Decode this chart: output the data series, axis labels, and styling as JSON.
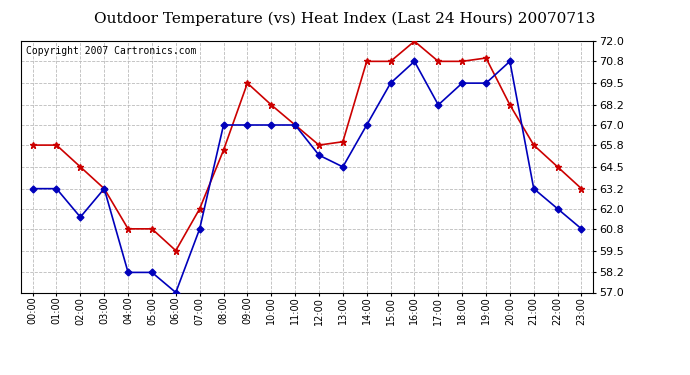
{
  "title": "Outdoor Temperature (vs) Heat Index (Last 24 Hours) 20070713",
  "copyright": "Copyright 2007 Cartronics.com",
  "hours": [
    "00:00",
    "01:00",
    "02:00",
    "03:00",
    "04:00",
    "05:00",
    "06:00",
    "07:00",
    "08:00",
    "09:00",
    "10:00",
    "11:00",
    "12:00",
    "13:00",
    "14:00",
    "15:00",
    "16:00",
    "17:00",
    "18:00",
    "19:00",
    "20:00",
    "21:00",
    "22:00",
    "23:00"
  ],
  "temp": [
    63.2,
    63.2,
    61.5,
    63.2,
    58.2,
    58.2,
    57.0,
    60.8,
    67.0,
    67.0,
    67.0,
    67.0,
    65.2,
    64.5,
    67.0,
    69.5,
    70.8,
    68.2,
    69.5,
    69.5,
    70.8,
    63.2,
    62.0,
    60.8
  ],
  "heat_index": [
    65.8,
    65.8,
    64.5,
    63.2,
    60.8,
    60.8,
    59.5,
    62.0,
    65.5,
    69.5,
    68.2,
    67.0,
    65.8,
    66.0,
    70.8,
    70.8,
    72.0,
    70.8,
    70.8,
    71.0,
    68.2,
    65.8,
    64.5,
    63.2
  ],
  "temp_color": "#0000bb",
  "heat_color": "#cc0000",
  "bg_color": "#ffffff",
  "grid_color": "#bbbbbb",
  "ylim_min": 57.0,
  "ylim_max": 72.0,
  "yticks": [
    57.0,
    58.2,
    59.5,
    60.8,
    62.0,
    63.2,
    64.5,
    65.8,
    67.0,
    68.2,
    69.5,
    70.8,
    72.0
  ],
  "title_fontsize": 11,
  "copyright_fontsize": 7,
  "tick_fontsize": 8,
  "xtick_fontsize": 7
}
